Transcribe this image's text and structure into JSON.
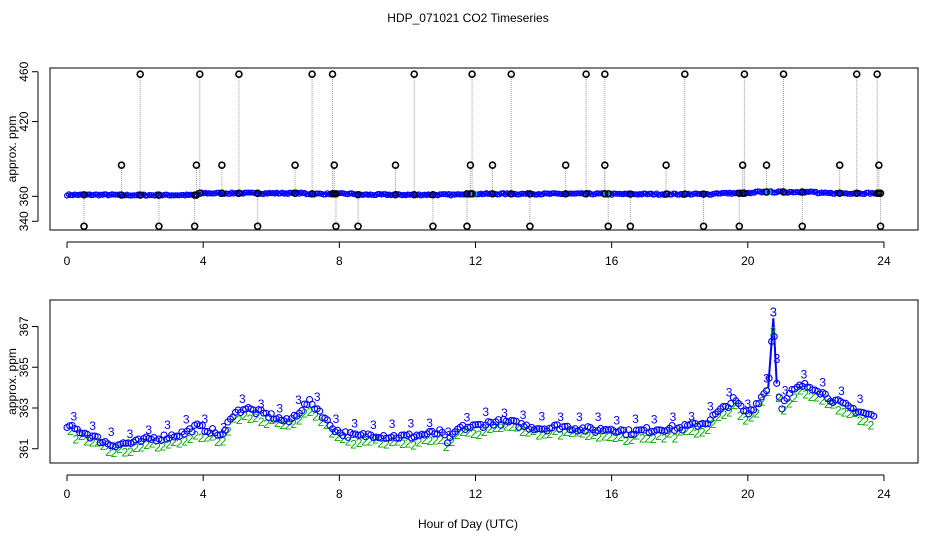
{
  "page": {
    "title": "HDP_071021  CO2 Timeseries",
    "xlabel": "Hour of Day (UTC)"
  },
  "colors": {
    "flagged": "#000000",
    "series_main": "#0000ff",
    "series_alt": "#00aa00",
    "connector": "#999999",
    "highlight": "#00cccc"
  },
  "chart_data": [
    {
      "type": "scatter",
      "title": "HDP_071021  CO2 Timeseries",
      "ylabel": "approx. ppm",
      "xlabel": "",
      "xlim": [
        -0.5,
        25
      ],
      "ylim": [
        333,
        463
      ],
      "xticks": [
        0,
        4,
        8,
        12,
        16,
        20,
        24
      ],
      "yticks": [
        340,
        360,
        420,
        460
      ],
      "baseline_segments": [
        {
          "x0": 0.0,
          "x1": 1.5,
          "y": 361.2
        },
        {
          "x0": 1.5,
          "x1": 3.8,
          "y": 361.0
        },
        {
          "x0": 3.8,
          "x1": 7.0,
          "y": 362.5
        },
        {
          "x0": 7.0,
          "x1": 8.5,
          "y": 362.0
        },
        {
          "x0": 8.5,
          "x1": 11.5,
          "y": 361.3
        },
        {
          "x0": 11.5,
          "x1": 16.0,
          "y": 362.0
        },
        {
          "x0": 16.0,
          "x1": 19.0,
          "y": 361.8
        },
        {
          "x0": 19.0,
          "x1": 20.2,
          "y": 362.5
        },
        {
          "x0": 20.2,
          "x1": 22.0,
          "y": 363.5
        },
        {
          "x0": 22.0,
          "x1": 23.8,
          "y": 362.5
        }
      ],
      "flag_high": [
        2.15,
        3.9,
        5.05,
        7.2,
        7.8,
        10.2,
        11.9,
        13.05,
        15.25,
        15.8,
        18.15,
        19.9,
        21.05,
        23.2,
        23.8
      ],
      "flag_mid": [
        1.6,
        3.8,
        4.55,
        6.7,
        7.85,
        9.65,
        11.85,
        12.5,
        14.65,
        15.8,
        17.6,
        19.85,
        20.55,
        22.7,
        23.85
      ],
      "flag_low": [
        0.5,
        2.7,
        3.75,
        5.6,
        7.9,
        8.55,
        10.75,
        11.75,
        13.6,
        15.9,
        16.55,
        18.7,
        19.75,
        21.6,
        23.9
      ],
      "high_value": 458,
      "mid_value": 385,
      "low_value": 336
    },
    {
      "type": "line",
      "title": "",
      "ylabel": "approx. ppm",
      "xlabel": "Hour of Day (UTC)",
      "xlim": [
        -0.5,
        25
      ],
      "ylim": [
        360.3,
        368.3
      ],
      "xticks": [
        0,
        4,
        8,
        12,
        16,
        20,
        24
      ],
      "yticks": [
        361,
        363,
        365,
        367
      ],
      "profile": [
        [
          0.0,
          362.1
        ],
        [
          0.5,
          361.8
        ],
        [
          1.0,
          361.4
        ],
        [
          1.3,
          361.2
        ],
        [
          2.0,
          361.3
        ],
        [
          2.5,
          361.5
        ],
        [
          3.0,
          361.6
        ],
        [
          3.5,
          361.8
        ],
        [
          3.8,
          362.1
        ],
        [
          4.2,
          361.9
        ],
        [
          4.6,
          361.6
        ],
        [
          4.8,
          362.6
        ],
        [
          5.2,
          363.0
        ],
        [
          5.6,
          362.8
        ],
        [
          6.0,
          362.6
        ],
        [
          6.5,
          362.3
        ],
        [
          6.8,
          362.8
        ],
        [
          7.1,
          363.3
        ],
        [
          7.4,
          362.9
        ],
        [
          7.7,
          362.2
        ],
        [
          8.0,
          361.8
        ],
        [
          8.5,
          361.6
        ],
        [
          9.0,
          361.7
        ],
        [
          9.5,
          361.6
        ],
        [
          10.0,
          361.6
        ],
        [
          10.5,
          361.7
        ],
        [
          11.0,
          361.8
        ],
        [
          11.2,
          361.3
        ],
        [
          11.5,
          362.0
        ],
        [
          12.0,
          362.1
        ],
        [
          12.5,
          362.3
        ],
        [
          13.0,
          362.3
        ],
        [
          13.5,
          362.1
        ],
        [
          14.0,
          362.0
        ],
        [
          14.5,
          362.1
        ],
        [
          15.0,
          362.0
        ],
        [
          15.5,
          361.9
        ],
        [
          16.0,
          362.0
        ],
        [
          16.5,
          361.8
        ],
        [
          17.0,
          361.9
        ],
        [
          17.5,
          362.0
        ],
        [
          18.0,
          362.0
        ],
        [
          18.5,
          362.2
        ],
        [
          18.8,
          362.3
        ],
        [
          19.0,
          362.6
        ],
        [
          19.3,
          363.0
        ],
        [
          19.6,
          363.4
        ],
        [
          19.8,
          363.0
        ],
        [
          20.0,
          362.7
        ],
        [
          20.3,
          363.3
        ],
        [
          20.6,
          364.0
        ],
        [
          20.75,
          367.4
        ],
        [
          20.85,
          364.2
        ],
        [
          21.0,
          363.1
        ],
        [
          21.3,
          363.8
        ],
        [
          21.6,
          364.1
        ],
        [
          22.0,
          364.0
        ],
        [
          22.3,
          363.6
        ],
        [
          22.6,
          363.3
        ],
        [
          23.0,
          363.0
        ],
        [
          23.5,
          362.7
        ],
        [
          23.7,
          362.6
        ]
      ]
    }
  ]
}
